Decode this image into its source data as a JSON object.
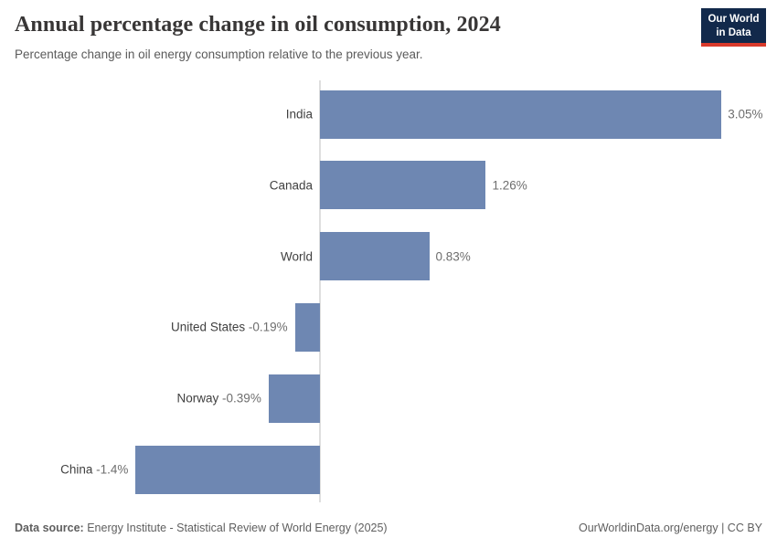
{
  "header": {
    "title": "Annual percentage change in oil consumption, 2024",
    "subtitle": "Percentage change in oil energy consumption relative to the previous year.",
    "logo": {
      "line1": "Our World",
      "line2": "in Data",
      "bg_color": "#12294b",
      "accent_color": "#d93a2b"
    }
  },
  "chart_data": {
    "type": "bar",
    "orientation": "horizontal",
    "title": "Annual percentage change in oil consumption, 2024",
    "subtitle": "Percentage change in oil energy consumption relative to the previous year.",
    "categories": [
      "India",
      "Canada",
      "World",
      "United States",
      "Norway",
      "China"
    ],
    "values": [
      3.05,
      1.26,
      0.83,
      -0.19,
      -0.39,
      -1.4
    ],
    "value_labels": [
      "3.05%",
      "1.26%",
      "0.83%",
      "-0.19%",
      "-0.39%",
      "-1.4%"
    ],
    "unit": "%",
    "xlim": [
      -1.55,
      3.45
    ],
    "grid": false,
    "legend": "none",
    "bar_color": "#6e87b2",
    "axis_color": "#dedede"
  },
  "footer": {
    "source_label": "Data source:",
    "source_text": " Energy Institute - Statistical Review of World Energy (2025)",
    "credit": "OurWorldinData.org/energy | CC BY"
  }
}
